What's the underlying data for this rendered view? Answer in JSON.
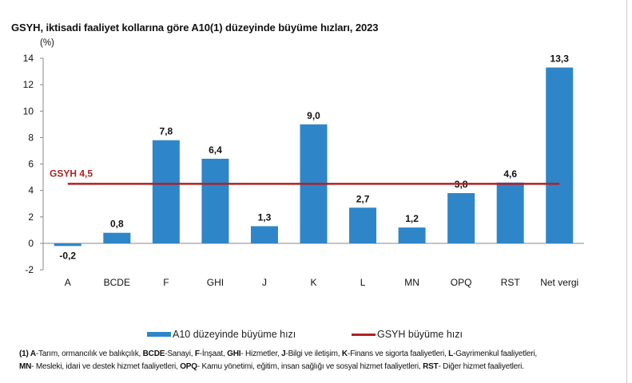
{
  "chart_data": {
    "type": "bar",
    "title": "GSYH, iktisadi faaliyet kollarına göre A10(1) düzeyinde büyüme hızları, 2023",
    "ylabel": "(%)",
    "ylim": [
      -2,
      14
    ],
    "yticks": [
      -2,
      0,
      2,
      4,
      6,
      8,
      10,
      12,
      14
    ],
    "categories": [
      "A",
      "BCDE",
      "F",
      "GHI",
      "J",
      "K",
      "L",
      "MN",
      "OPQ",
      "RST",
      "Net vergi"
    ],
    "values": [
      -0.2,
      0.8,
      7.8,
      6.4,
      1.3,
      9.0,
      2.7,
      1.2,
      3.8,
      4.6,
      13.3
    ],
    "data_labels": [
      "-0,2",
      "0,8",
      "7,8",
      "6,4",
      "1,3",
      "9,0",
      "2,7",
      "1,2",
      "3,8",
      "4,6",
      "13,3"
    ],
    "reference_line": {
      "value": 4.5,
      "label": "GSYH 4,5",
      "color": "#b02025"
    },
    "bar_color": "#2e86c8",
    "grid": false,
    "legend_position": "bottom",
    "series": [
      {
        "name": "A10 düzeyinde büyüme hızı"
      },
      {
        "name": "GSYH büyüme hızı"
      }
    ]
  },
  "footnote": [
    [
      "(1) A",
      "-Tarım, ormancılık ve balıkçılık, "
    ],
    [
      "BCDE",
      "-Sanayi, "
    ],
    [
      "F",
      "-İnşaat, "
    ],
    [
      "GHI",
      "- Hizmetler, "
    ],
    [
      "J",
      "-Bilgi ve iletişim, "
    ],
    [
      "K",
      "-Finans ve sigorta faaliyetleri, "
    ],
    [
      "L",
      "-Gayrimenkul faaliyetleri, "
    ],
    [
      "MN",
      "- Mesleki, idari ve destek hizmet faaliyetleri, "
    ],
    [
      "OPQ",
      "- Kamu yönetimi, eğitim, insan sağlığı ve sosyal hizmet faaliyetleri, "
    ],
    [
      "RST",
      "- Diğer hizmet faaliyetleri."
    ]
  ]
}
